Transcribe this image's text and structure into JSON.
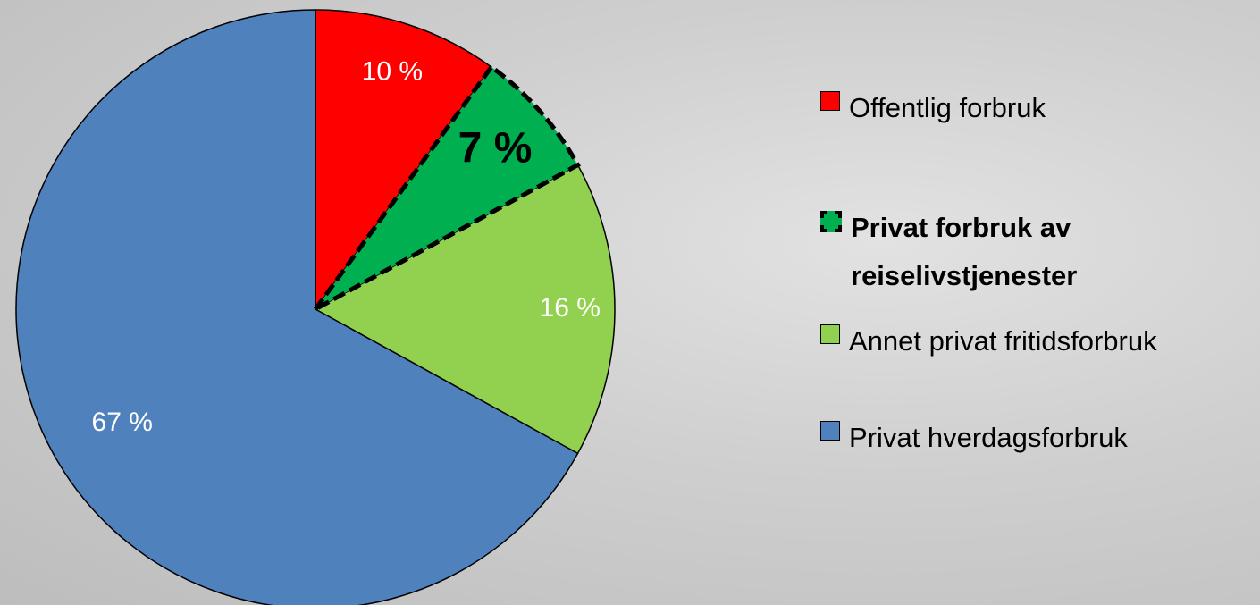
{
  "chart_data": {
    "type": "pie",
    "categories": [
      "Offentlig forbruk",
      "Privat forbruk av reiselivstjenester",
      "Annet privat fritidsforbruk",
      "Privat hverdagsforbruk"
    ],
    "values": [
      10,
      7,
      16,
      67
    ],
    "value_labels": [
      "10 %",
      "7 %",
      "16 %",
      "67 %"
    ],
    "colors": [
      "#ff0000",
      "#00b050",
      "#92d050",
      "#4f81bd"
    ],
    "legend": "right"
  }
}
